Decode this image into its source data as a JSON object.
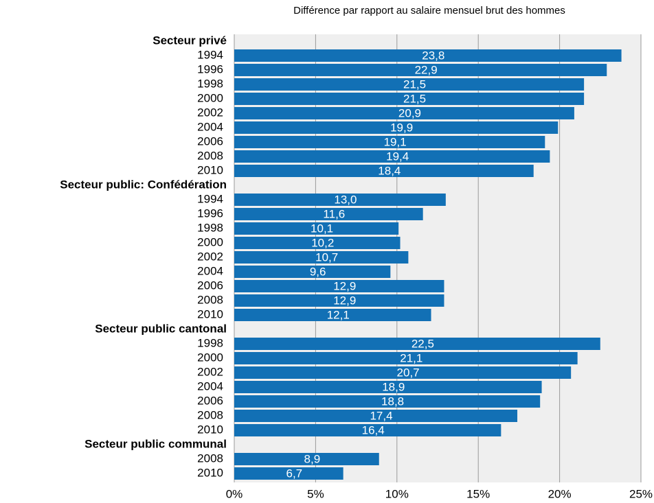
{
  "chart_data": {
    "type": "bar",
    "orientation": "horizontal",
    "subtitle": "Différence par rapport au salaire mensuel brut des hommes",
    "color": "#1270b5",
    "grid": true,
    "xlim": [
      0,
      25
    ],
    "xticks": [
      {
        "value": 0,
        "label": "0%"
      },
      {
        "value": 5,
        "label": "5%"
      },
      {
        "value": 10,
        "label": "10%"
      },
      {
        "value": 15,
        "label": "15%"
      },
      {
        "value": 20,
        "label": "20%"
      },
      {
        "value": 25,
        "label": "25%"
      }
    ],
    "groups": [
      {
        "name": "Secteur privé",
        "categories": [
          "1994",
          "1996",
          "1998",
          "2000",
          "2002",
          "2004",
          "2006",
          "2008",
          "2010"
        ],
        "values": [
          23.8,
          22.9,
          21.5,
          21.5,
          20.9,
          19.9,
          19.1,
          19.4,
          18.4
        ],
        "value_labels": [
          "23,8",
          "22,9",
          "21,5",
          "21,5",
          "20,9",
          "19,9",
          "19,1",
          "19,4",
          "18,4"
        ]
      },
      {
        "name": "Secteur public: Confédération",
        "categories": [
          "1994",
          "1996",
          "1998",
          "2000",
          "2002",
          "2004",
          "2006",
          "2008",
          "2010"
        ],
        "values": [
          13.0,
          11.6,
          10.1,
          10.2,
          10.7,
          9.6,
          12.9,
          12.9,
          12.1
        ],
        "value_labels": [
          "13,0",
          "11,6",
          "10,1",
          "10,2",
          "10,7",
          "9,6",
          "12,9",
          "12,9",
          "12,1"
        ]
      },
      {
        "name": "Secteur public cantonal",
        "categories": [
          "1998",
          "2000",
          "2002",
          "2004",
          "2006",
          "2008",
          "2010"
        ],
        "values": [
          22.5,
          21.1,
          20.7,
          18.9,
          18.8,
          17.4,
          16.4
        ],
        "value_labels": [
          "22,5",
          "21,1",
          "20,7",
          "18,9",
          "18,8",
          "17,4",
          "16,4"
        ]
      },
      {
        "name": "Secteur public communal",
        "categories": [
          "2008",
          "2010"
        ],
        "values": [
          8.9,
          6.7
        ],
        "value_labels": [
          "8,9",
          "6,7"
        ]
      }
    ]
  }
}
